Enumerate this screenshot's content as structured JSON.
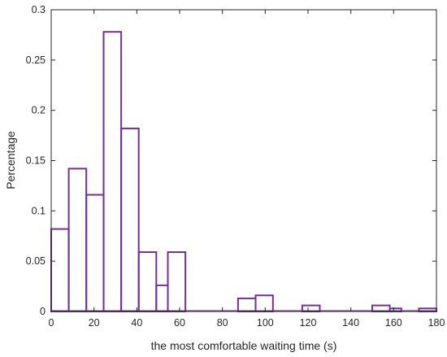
{
  "chart_data": {
    "type": "bar",
    "subtype": "histogram",
    "title": "",
    "xlabel": "the most comfortable waiting time (s)",
    "ylabel": "Percentage",
    "xlim": [
      0,
      180
    ],
    "ylim": [
      0,
      0.3
    ],
    "grid": false,
    "legend": "none",
    "bar_color": "#7030A0",
    "x_ticks": [
      "0",
      "20",
      "40",
      "60",
      "80",
      "100",
      "120",
      "140",
      "160",
      "180"
    ],
    "y_ticks": [
      "0",
      "0.05",
      "0.1",
      "0.15",
      "0.2",
      "0.25",
      "0.3"
    ],
    "bins": [
      {
        "x0": 0.0,
        "x1": 8.2,
        "value": 0.082
      },
      {
        "x0": 8.2,
        "x1": 16.4,
        "value": 0.142
      },
      {
        "x0": 16.4,
        "x1": 24.5,
        "value": 0.116
      },
      {
        "x0": 24.5,
        "x1": 32.7,
        "value": 0.278
      },
      {
        "x0": 32.7,
        "x1": 40.9,
        "value": 0.182
      },
      {
        "x0": 40.9,
        "x1": 49.1,
        "value": 0.059
      },
      {
        "x0": 49.1,
        "x1": 54.5,
        "value": 0.026
      },
      {
        "x0": 54.5,
        "x1": 62.7,
        "value": 0.059
      },
      {
        "x0": 87.3,
        "x1": 95.5,
        "value": 0.013
      },
      {
        "x0": 95.5,
        "x1": 103.6,
        "value": 0.016
      },
      {
        "x0": 117.3,
        "x1": 125.5,
        "value": 0.006
      },
      {
        "x0": 150.0,
        "x1": 158.2,
        "value": 0.006
      },
      {
        "x0": 158.2,
        "x1": 163.6,
        "value": 0.003
      },
      {
        "x0": 171.8,
        "x1": 180.0,
        "value": 0.003
      }
    ]
  }
}
